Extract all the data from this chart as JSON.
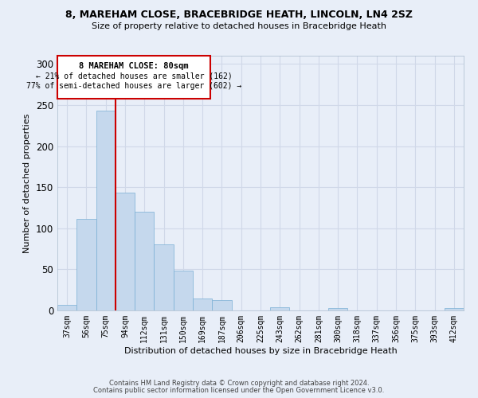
{
  "title1": "8, MAREHAM CLOSE, BRACEBRIDGE HEATH, LINCOLN, LN4 2SZ",
  "title2": "Size of property relative to detached houses in Bracebridge Heath",
  "xlabel": "Distribution of detached houses by size in Bracebridge Heath",
  "ylabel": "Number of detached properties",
  "footer1": "Contains HM Land Registry data © Crown copyright and database right 2024.",
  "footer2": "Contains public sector information licensed under the Open Government Licence v3.0.",
  "annotation_title": "8 MAREHAM CLOSE: 80sqm",
  "annotation_line1": "← 21% of detached houses are smaller (162)",
  "annotation_line2": "77% of semi-detached houses are larger (602) →",
  "bar_categories": [
    "37sqm",
    "56sqm",
    "75sqm",
    "94sqm",
    "112sqm",
    "131sqm",
    "150sqm",
    "169sqm",
    "187sqm",
    "206sqm",
    "225sqm",
    "243sqm",
    "262sqm",
    "281sqm",
    "300sqm",
    "318sqm",
    "337sqm",
    "356sqm",
    "375sqm",
    "393sqm",
    "412sqm"
  ],
  "bar_values": [
    7,
    111,
    243,
    143,
    120,
    80,
    48,
    15,
    13,
    0,
    0,
    4,
    0,
    0,
    3,
    0,
    0,
    0,
    0,
    0,
    3
  ],
  "bar_color": "#c5d8ed",
  "bar_edge_color": "#7aafd4",
  "vline_color": "#cc0000",
  "vline_position": 2.5,
  "grid_color": "#d0d8e8",
  "background_color": "#e8eef8",
  "annotation_box_color": "white",
  "annotation_box_edge": "#cc0000",
  "ylim": [
    0,
    310
  ],
  "yticks": [
    0,
    50,
    100,
    150,
    200,
    250,
    300
  ]
}
